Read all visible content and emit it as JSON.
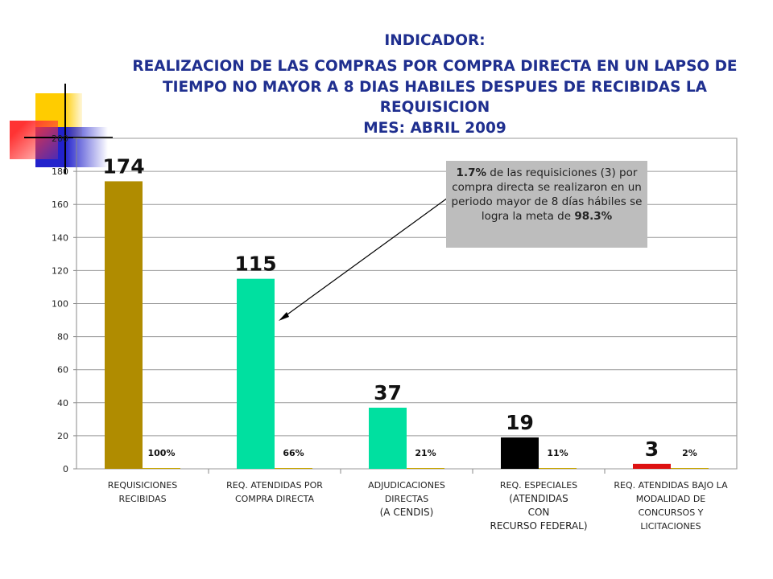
{
  "chart_data": {
    "type": "bar",
    "title": [
      "INDICADOR:",
      "REALIZACION  DE LAS COMPRAS POR COMPRA DIRECTA EN UN LAPSO DE",
      "TIEMPO NO MAYOR A 8 DIAS HABILES DESPUES DE RECIBIDAS LA",
      "REQUISICION",
      "MES: ABRIL 2009"
    ],
    "categories": [
      [
        "REQUISICIONES",
        "RECIBIDAS"
      ],
      [
        "REQ. ATENDIDAS POR",
        "COMPRA DIRECTA"
      ],
      [
        "ADJUDICACIONES",
        "DIRECTAS",
        "(A CENDIS)"
      ],
      [
        "REQ. ESPECIALES",
        "(ATENDIDAS",
        "CON",
        "RECURSO FEDERAL)"
      ],
      [
        "REQ. ATENDIDAS BAJO LA",
        "MODALIDAD DE",
        "CONCURSOS Y",
        "LICITACIONES"
      ]
    ],
    "series": [
      {
        "values": [
          174,
          115,
          37,
          19,
          3
        ],
        "labels": [
          "174",
          "115",
          "37",
          "19",
          "3"
        ]
      },
      {
        "values": [
          1,
          0.66,
          0.21,
          0.11,
          0.02
        ],
        "labels": [
          "100%",
          "66%",
          "21%",
          "11%",
          "2%"
        ]
      }
    ],
    "bar_colors": [
      "#b08c00",
      "#00e0a0",
      "#00e0a0",
      "#000000",
      "#dd1111"
    ],
    "pct_bar_color": "#c8a400",
    "yticks": [
      0,
      20,
      40,
      60,
      80,
      100,
      120,
      140,
      160,
      180,
      200
    ],
    "ylim": [
      0,
      200
    ],
    "grid": true,
    "annotation": {
      "bold1": "1.7%",
      "text1": " de las requisiciones (3) por compra directa se realizaron en un periodo mayor de 8 días hábiles se logra la meta de ",
      "bold2": "98.3%"
    }
  }
}
